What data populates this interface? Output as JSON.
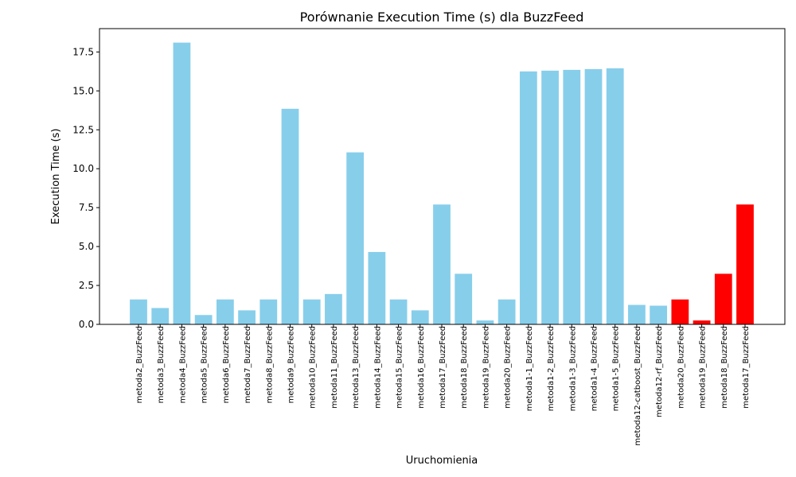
{
  "chart_data": {
    "type": "bar",
    "title": "Porównanie Execution Time (s) dla BuzzFeed",
    "xlabel": "Uruchomienia",
    "ylabel": "Execution Time (s)",
    "ylim": [
      0,
      19.0
    ],
    "yticks": [
      "0.0",
      "2.5",
      "5.0",
      "7.5",
      "10.0",
      "12.5",
      "15.0",
      "17.5"
    ],
    "grid": false,
    "legend": "none",
    "colors": {
      "default": "#87ceeb",
      "highlight": "#ff0000"
    },
    "categories": [
      "metoda2_BuzzFeed",
      "metoda3_BuzzFeed",
      "metoda4_BuzzFeed",
      "metoda5_BuzzFeed",
      "metoda6_BuzzFeed",
      "metoda7_BuzzFeed",
      "metoda8_BuzzFeed",
      "metoda9_BuzzFeed",
      "metoda10_BuzzFeed",
      "metoda11_BuzzFeed",
      "metoda13_BuzzFeed",
      "metoda14_BuzzFeed",
      "metoda15_BuzzFeed",
      "metoda16_BuzzFeed",
      "metoda17_BuzzFeed",
      "metoda18_BuzzFeed",
      "metoda19_BuzzFeed",
      "metoda20_BuzzFeed",
      "metoda1-1_BuzzFeed",
      "metoda1-2_BuzzFeed",
      "metoda1-3_BuzzFeed",
      "metoda1-4_BuzzFeed",
      "metoda1-5_BuzzFeed",
      "metoda12-catboost_BuzzFeed",
      "metoda12-rf_BuzzFeed",
      "metoda20_BuzzFeed",
      "metoda19_BuzzFeed",
      "metoda18_BuzzFeed",
      "metoda17_BuzzFeed"
    ],
    "values": [
      1.6,
      1.05,
      18.1,
      0.6,
      1.6,
      0.9,
      1.6,
      13.85,
      1.6,
      1.95,
      11.05,
      4.65,
      1.6,
      0.9,
      7.7,
      3.25,
      0.25,
      1.6,
      16.25,
      16.3,
      16.35,
      16.4,
      16.45,
      1.25,
      1.2,
      1.6,
      0.25,
      3.25,
      7.7
    ],
    "highlighted": [
      25,
      26,
      27,
      28
    ]
  }
}
